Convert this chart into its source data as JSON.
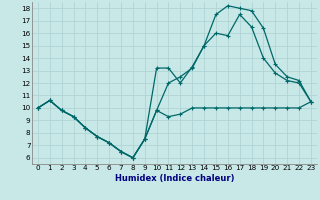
{
  "xlabel": "Humidex (Indice chaleur)",
  "bg_color": "#c8e8e8",
  "grid_color": "#b0d4d4",
  "line_color": "#006868",
  "xlim": [
    -0.5,
    23.5
  ],
  "ylim": [
    5.5,
    18.5
  ],
  "xticks": [
    0,
    1,
    2,
    3,
    4,
    5,
    6,
    7,
    8,
    9,
    10,
    11,
    12,
    13,
    14,
    15,
    16,
    17,
    18,
    19,
    20,
    21,
    22,
    23
  ],
  "yticks": [
    6,
    7,
    8,
    9,
    10,
    11,
    12,
    13,
    14,
    15,
    16,
    17,
    18
  ],
  "line1_x": [
    0,
    1,
    2,
    3,
    4,
    5,
    6,
    7,
    8,
    9,
    10,
    11,
    12,
    13,
    14,
    15,
    16,
    17,
    18,
    19,
    20,
    21,
    22,
    23
  ],
  "line1_y": [
    10.0,
    10.6,
    9.8,
    9.3,
    8.4,
    7.7,
    7.2,
    6.5,
    6.0,
    7.5,
    9.8,
    9.3,
    9.5,
    10.0,
    10.0,
    10.0,
    10.0,
    10.0,
    10.0,
    10.0,
    10.0,
    10.0,
    10.0,
    10.5
  ],
  "line2_x": [
    0,
    1,
    2,
    3,
    4,
    5,
    6,
    7,
    8,
    9,
    10,
    11,
    12,
    13,
    14,
    15,
    16,
    17,
    18,
    19,
    20,
    21,
    22,
    23
  ],
  "line2_y": [
    10.0,
    10.6,
    9.8,
    9.3,
    8.4,
    7.7,
    7.2,
    6.5,
    6.0,
    7.5,
    9.8,
    12.0,
    12.5,
    13.2,
    15.0,
    16.0,
    15.8,
    17.5,
    16.5,
    14.0,
    12.8,
    12.2,
    12.0,
    10.5
  ],
  "line3_x": [
    0,
    1,
    2,
    3,
    4,
    5,
    6,
    7,
    8,
    9,
    10,
    11,
    12,
    13,
    14,
    15,
    16,
    17,
    18,
    19,
    20,
    21,
    22,
    23
  ],
  "line3_y": [
    10.0,
    10.6,
    9.8,
    9.3,
    8.4,
    7.7,
    7.2,
    6.5,
    6.0,
    7.5,
    13.2,
    13.2,
    12.0,
    13.3,
    15.0,
    17.5,
    18.2,
    18.0,
    17.8,
    16.4,
    13.5,
    12.5,
    12.2,
    10.5
  ]
}
